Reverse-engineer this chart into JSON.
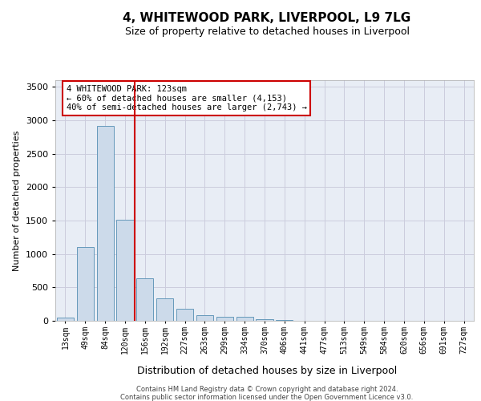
{
  "title": "4, WHITEWOOD PARK, LIVERPOOL, L9 7LG",
  "subtitle": "Size of property relative to detached houses in Liverpool",
  "xlabel": "Distribution of detached houses by size in Liverpool",
  "ylabel": "Number of detached properties",
  "footer_line1": "Contains HM Land Registry data © Crown copyright and database right 2024.",
  "footer_line2": "Contains public sector information licensed under the Open Government Licence v3.0.",
  "bar_color": "#ccdaea",
  "bar_edge_color": "#6699bb",
  "red_line_x": 3.5,
  "annotation_text": "4 WHITEWOOD PARK: 123sqm\n← 60% of detached houses are smaller (4,153)\n40% of semi-detached houses are larger (2,743) →",
  "annotation_box_color": "#ffffff",
  "annotation_box_edge_color": "#cc0000",
  "categories": [
    "13sqm",
    "49sqm",
    "84sqm",
    "120sqm",
    "156sqm",
    "192sqm",
    "227sqm",
    "263sqm",
    "299sqm",
    "334sqm",
    "370sqm",
    "406sqm",
    "441sqm",
    "477sqm",
    "513sqm",
    "549sqm",
    "584sqm",
    "620sqm",
    "656sqm",
    "691sqm",
    "727sqm"
  ],
  "values": [
    50,
    1100,
    2920,
    1510,
    640,
    340,
    185,
    90,
    65,
    55,
    30,
    10,
    5,
    5,
    3,
    3,
    3,
    3,
    3,
    3,
    3
  ],
  "ylim": [
    0,
    3600
  ],
  "yticks": [
    0,
    500,
    1000,
    1500,
    2000,
    2500,
    3000,
    3500
  ],
  "grid_color": "#ccccdd",
  "background_color": "#e8edf5",
  "title_fontsize": 11,
  "subtitle_fontsize": 9,
  "ylabel_fontsize": 8,
  "xlabel_fontsize": 9,
  "tick_fontsize": 7,
  "ytick_fontsize": 8,
  "footer_fontsize": 6,
  "annot_fontsize": 7.5
}
